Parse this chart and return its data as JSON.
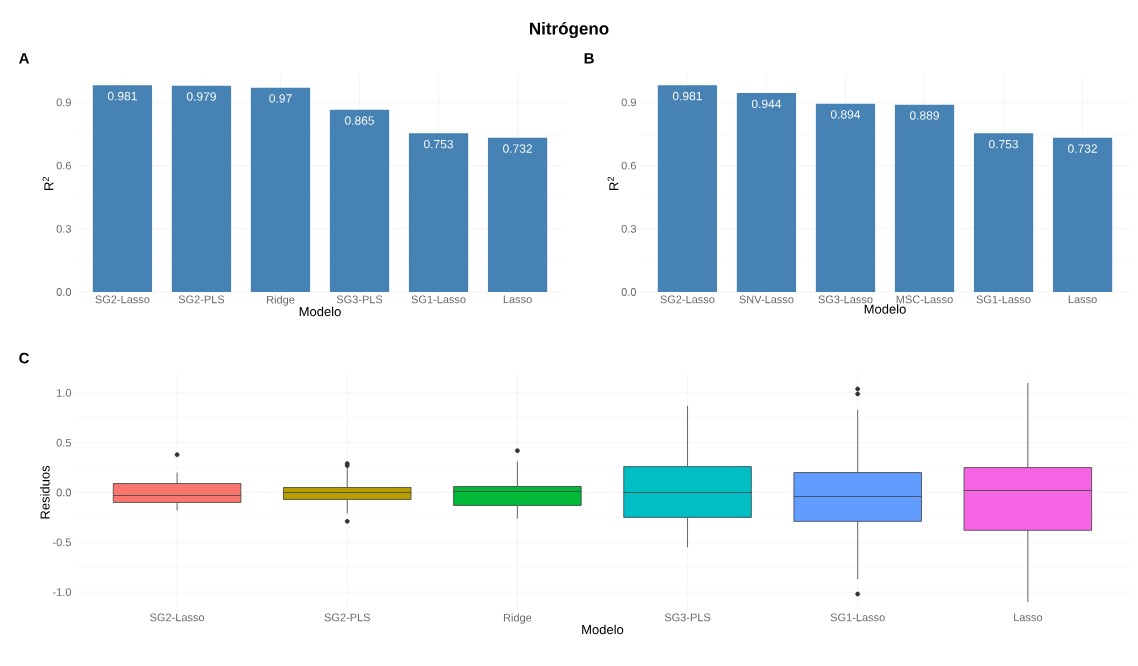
{
  "chart_data": [
    {
      "type": "bar",
      "title": "A",
      "annotations": [
        "Nitrógeno"
      ],
      "xlabel": "Modelo",
      "ylabel": "R$^{2}$",
      "categories": [
        "SG2-Lasso",
        "SG2-PLS",
        "Ridge",
        "SG3-PLS",
        "SG1-Lasso",
        "Lasso"
      ],
      "values": [
        0.981,
        0.979,
        0.97,
        0.865,
        0.753,
        0.732
      ],
      "color": "#4682b4",
      "data_labels": true,
      "ylim": [
        0,
        1.03
      ],
      "yticks": [
        {
          "value": 0,
          "label": "0.0"
        },
        0.3,
        0.6,
        0.9
      ],
      "grid": true
    },
    {
      "type": "bar",
      "title": "B",
      "xlabel": "Modelo",
      "ylabel": "R$^{2}$",
      "categories": [
        "SG2-Lasso",
        "SNV-Lasso",
        "SG3-Lasso",
        "MSC-Lasso",
        "SG1-Lasso",
        "Lasso"
      ],
      "values": [
        0.981,
        0.944,
        0.894,
        0.889,
        0.753,
        0.732
      ],
      "color": "#4682b4",
      "data_labels": true,
      "ylim": [
        0,
        1.03
      ],
      "yticks": [
        {
          "value": 0,
          "label": "0.0"
        },
        0.3,
        0.6,
        0.9
      ],
      "grid": true
    },
    {
      "type": "box",
      "title": "C",
      "xlabel": "Modelo",
      "ylabel": "Residuos",
      "categories": [
        "SG2-Lasso",
        "SG2-PLS",
        "Ridge",
        "SG3-PLS",
        "SG1-Lasso",
        "Lasso"
      ],
      "boxes": [
        {
          "low": -0.18,
          "q1": -0.1,
          "median": -0.03,
          "q3": 0.09,
          "high": 0.2,
          "outliers": [
            0.38
          ]
        },
        {
          "low": -0.21,
          "q1": -0.07,
          "median": 0.0,
          "q3": 0.05,
          "high": 0.26,
          "outliers": [
            0.27,
            0.29,
            -0.29
          ]
        },
        {
          "low": -0.26,
          "q1": -0.13,
          "median": 0.01,
          "q3": 0.06,
          "high": 0.31,
          "outliers": [
            0.42
          ]
        },
        {
          "low": -0.55,
          "q1": -0.25,
          "median": 0.0,
          "q3": 0.26,
          "high": 0.87
        },
        {
          "low": -0.87,
          "q1": -0.29,
          "median": -0.04,
          "q3": 0.2,
          "high": 0.83,
          "outliers": [
            1.04,
            0.99,
            -1.02
          ]
        },
        {
          "low": -1.1,
          "q1": -0.38,
          "median": 0.02,
          "q3": 0.25,
          "high": 1.1
        }
      ],
      "colors": [
        "#f8766d",
        "#b79f00",
        "#00ba38",
        "#00bfc4",
        "#619cff",
        "#f564e3"
      ],
      "ylim": [
        -1.18,
        1.18
      ],
      "yticks": [
        {
          "value": -1,
          "label": "-1.0"
        },
        {
          "value": -0.5,
          "label": "-0.5"
        },
        {
          "value": 0,
          "label": "0.0"
        },
        {
          "value": 0.5,
          "label": "0.5"
        },
        {
          "value": 1,
          "label": "1.0"
        }
      ],
      "grid": true
    }
  ]
}
